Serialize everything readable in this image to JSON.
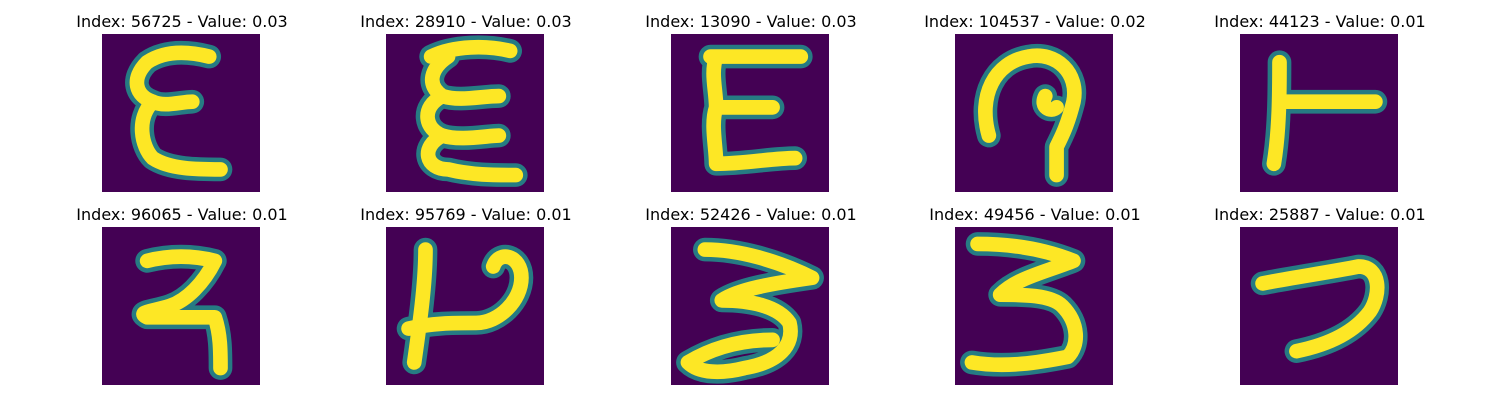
{
  "figure": {
    "colormap": {
      "low": "#440154",
      "mid": "#21918c",
      "high": "#fde725"
    },
    "panels": [
      {
        "title": "Index: 56725 - Value: 0.03",
        "glyph": "glyph-e-variant-a"
      },
      {
        "title": "Index: 28910 - Value: 0.03",
        "glyph": "glyph-e-variant-b"
      },
      {
        "title": "Index: 13090 - Value: 0.03",
        "glyph": "glyph-e-variant-c"
      },
      {
        "title": "Index: 104537 - Value: 0.02",
        "glyph": "glyph-loop-hook"
      },
      {
        "title": "Index: 44123 - Value: 0.01",
        "glyph": "glyph-t-sideways"
      },
      {
        "title": "Index: 96065 - Value: 0.01",
        "glyph": "glyph-ra-shape"
      },
      {
        "title": "Index: 95769 - Value: 0.01",
        "glyph": "glyph-p-bar"
      },
      {
        "title": "Index: 52426 - Value: 0.01",
        "glyph": "glyph-three-wide"
      },
      {
        "title": "Index: 49456 - Value: 0.01",
        "glyph": "glyph-three-tall"
      },
      {
        "title": "Index: 25887 - Value: 0.01",
        "glyph": "glyph-seven-hook"
      }
    ]
  }
}
